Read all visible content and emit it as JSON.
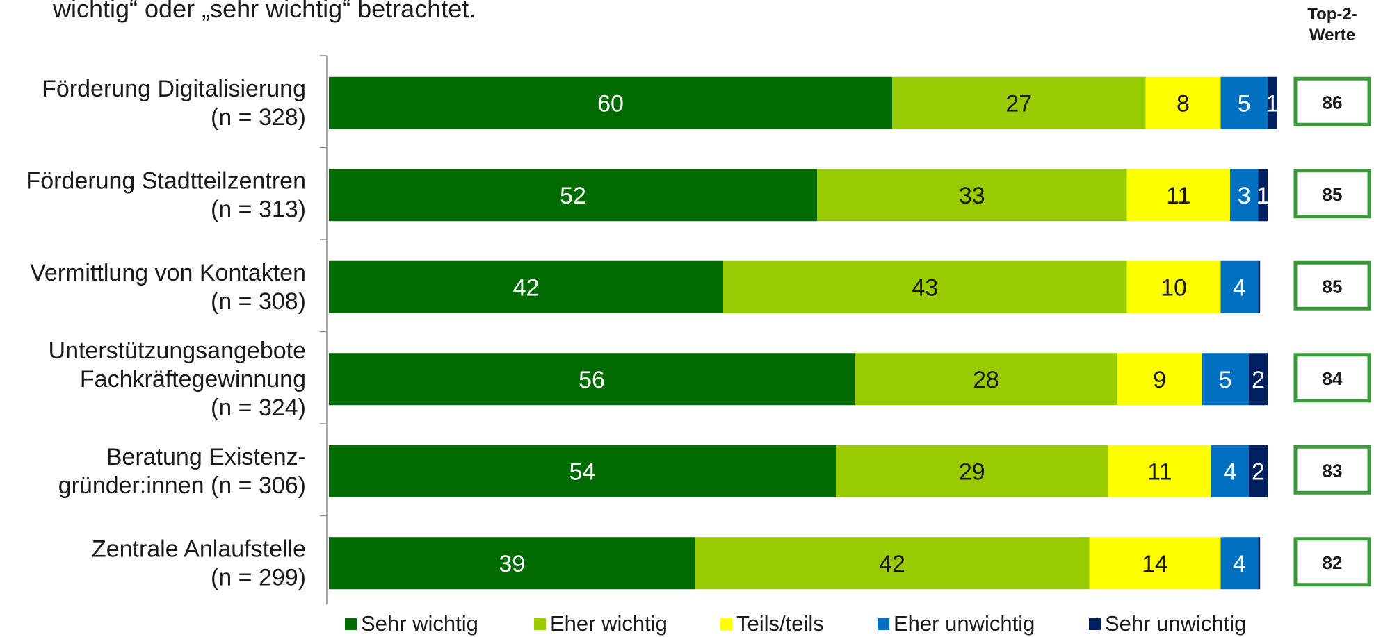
{
  "header": {
    "subtitle": "wichtig“ oder „sehr wichtig“ betrachtet.",
    "top2_label_line1": "Top-2-",
    "top2_label_line2": "Werte"
  },
  "colors": {
    "sehr_wichtig": "#006b00",
    "eher_wichtig": "#99cc00",
    "teils_teils": "#ffff00",
    "eher_unwichtig": "#0070c0",
    "sehr_unwichtig": "#002060",
    "top2_border": "#3a9a3a"
  },
  "chart_data": {
    "type": "bar",
    "orientation": "horizontal",
    "stacked": true,
    "xlim": [
      0,
      100
    ],
    "categories": [
      [
        "Förderung Digitalisierung",
        "(n = 328)"
      ],
      [
        "Förderung Stadtteilzentren",
        "(n = 313)"
      ],
      [
        "Vermittlung von Kontakten",
        "(n = 308)"
      ],
      [
        "Unterstützungsangebote",
        "Fachkräftegewinnung",
        "(n = 324)"
      ],
      [
        "Beratung Existenz-",
        "gründer:innen  (n = 306)"
      ],
      [
        "Zentrale Anlaufstelle",
        "(n = 299)"
      ]
    ],
    "series": [
      {
        "name": "Sehr wichtig",
        "values": [
          60,
          52,
          42,
          56,
          54,
          39
        ],
        "labels": [
          "60",
          "52",
          "42",
          "56",
          "54",
          "39"
        ]
      },
      {
        "name": "Eher wichtig",
        "values": [
          27,
          33,
          43,
          28,
          29,
          42
        ],
        "labels": [
          "27",
          "33",
          "43",
          "28",
          "29",
          "42"
        ]
      },
      {
        "name": "Teils/teils",
        "values": [
          8,
          11,
          10,
          9,
          11,
          14
        ],
        "labels": [
          "8",
          "11",
          "10",
          "9",
          "11",
          "14"
        ]
      },
      {
        "name": "Eher unwichtig",
        "values": [
          5,
          3,
          4,
          5,
          4,
          4
        ],
        "labels": [
          "5",
          "3",
          "4",
          "5",
          "4",
          "4"
        ]
      },
      {
        "name": "Sehr unwichtig",
        "values": [
          1,
          1,
          0.2,
          2,
          2,
          0.2
        ],
        "labels": [
          "1",
          "1",
          "",
          "2",
          "2",
          ""
        ]
      }
    ],
    "top2": [
      "86",
      "85",
      "85",
      "84",
      "83",
      "82"
    ],
    "legend_position": "bottom"
  }
}
